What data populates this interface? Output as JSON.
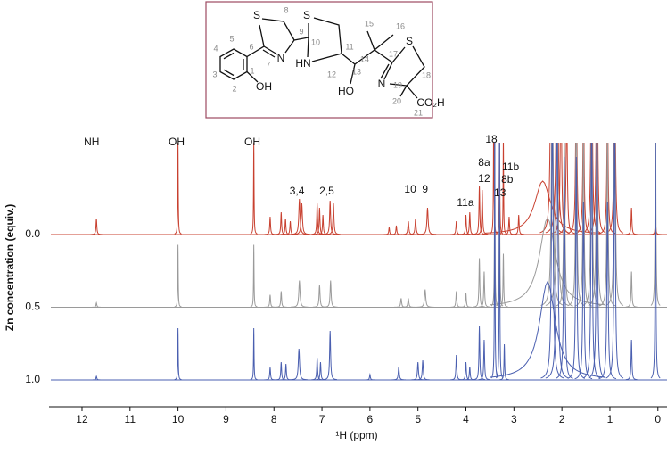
{
  "structure": {
    "atoms": [
      "S",
      "N",
      "OH",
      "S",
      "HN",
      "HO",
      "S",
      "N",
      "CO₂H"
    ],
    "numbers": [
      "1",
      "2",
      "3",
      "4",
      "5",
      "6",
      "7",
      "8",
      "9",
      "10",
      "11",
      "12",
      "13",
      "14",
      "15",
      "16",
      "17",
      "18",
      "19",
      "20",
      "21"
    ]
  },
  "chart_data": {
    "type": "spectrum",
    "xlabel": "¹H (ppm)",
    "ylabel": "Zn concentration (equiv.)",
    "xlim": [
      12.65,
      -0.19
    ],
    "xticks": [
      12,
      11,
      10,
      9,
      8,
      7,
      6,
      5,
      4,
      3,
      2,
      1,
      0
    ],
    "series": [
      {
        "name": "0.0",
        "color": "#c8402f",
        "peaks": [
          [
            11.7,
            18,
            0.01
          ],
          [
            10.0,
            105,
            0.006
          ],
          [
            8.42,
            105,
            0.006
          ],
          [
            8.08,
            20,
            0.01
          ],
          [
            7.85,
            25,
            0.01
          ],
          [
            7.76,
            18,
            0.01
          ],
          [
            7.66,
            15,
            0.01
          ],
          [
            7.47,
            40,
            0.015
          ],
          [
            7.42,
            35,
            0.015
          ],
          [
            7.1,
            35,
            0.01
          ],
          [
            7.05,
            30,
            0.01
          ],
          [
            6.98,
            22,
            0.01
          ],
          [
            6.83,
            38,
            0.012
          ],
          [
            6.76,
            35,
            0.012
          ],
          [
            5.6,
            8,
            0.01
          ],
          [
            5.45,
            10,
            0.01
          ],
          [
            5.2,
            15,
            0.012
          ],
          [
            5.05,
            18,
            0.012
          ],
          [
            4.8,
            30,
            0.015
          ],
          [
            4.2,
            15,
            0.01
          ],
          [
            4.0,
            22,
            0.01
          ],
          [
            3.92,
            25,
            0.01
          ],
          [
            3.72,
            55,
            0.01
          ],
          [
            3.66,
            50,
            0.01
          ],
          [
            3.42,
            180,
            0.006
          ],
          [
            3.3,
            130,
            0.006
          ],
          [
            3.22,
            110,
            0.006
          ],
          [
            3.1,
            20,
            0.01
          ],
          [
            2.9,
            22,
            0.01
          ],
          [
            2.4,
            60,
            0.2
          ],
          [
            2.22,
            300,
            0.02
          ],
          [
            2.1,
            300,
            0.02
          ],
          [
            2.02,
            200,
            0.015
          ],
          [
            1.9,
            150,
            0.015
          ],
          [
            1.7,
            200,
            0.015
          ],
          [
            1.55,
            160,
            0.015
          ],
          [
            1.38,
            300,
            0.015
          ],
          [
            1.27,
            300,
            0.015
          ],
          [
            1.05,
            150,
            0.015
          ],
          [
            0.9,
            250,
            0.015
          ],
          [
            0.55,
            30,
            0.01
          ],
          [
            0.05,
            15,
            0.01
          ]
        ]
      },
      {
        "name": "0.5",
        "color": "#9a9a9a",
        "peaks": [
          [
            11.7,
            5,
            0.01
          ],
          [
            10.0,
            70,
            0.006
          ],
          [
            8.42,
            70,
            0.006
          ],
          [
            8.08,
            14,
            0.01
          ],
          [
            7.85,
            18,
            0.01
          ],
          [
            7.47,
            30,
            0.015
          ],
          [
            7.05,
            25,
            0.012
          ],
          [
            6.82,
            30,
            0.012
          ],
          [
            5.35,
            10,
            0.012
          ],
          [
            5.2,
            10,
            0.012
          ],
          [
            4.85,
            20,
            0.015
          ],
          [
            4.2,
            18,
            0.01
          ],
          [
            4.0,
            16,
            0.01
          ],
          [
            3.72,
            55,
            0.01
          ],
          [
            3.62,
            40,
            0.01
          ],
          [
            3.4,
            200,
            0.006
          ],
          [
            3.3,
            200,
            0.006
          ],
          [
            3.22,
            60,
            0.008
          ],
          [
            2.3,
            100,
            0.2
          ],
          [
            2.2,
            300,
            0.02
          ],
          [
            2.1,
            300,
            0.02
          ],
          [
            1.95,
            200,
            0.015
          ],
          [
            1.7,
            250,
            0.015
          ],
          [
            1.55,
            200,
            0.015
          ],
          [
            1.38,
            300,
            0.015
          ],
          [
            1.27,
            300,
            0.015
          ],
          [
            1.05,
            200,
            0.015
          ],
          [
            0.9,
            300,
            0.015
          ],
          [
            0.55,
            40,
            0.01
          ],
          [
            0.05,
            300,
            0.008
          ]
        ]
      },
      {
        "name": "1.0",
        "color": "#4a5fb0",
        "peaks": [
          [
            11.7,
            4,
            0.01
          ],
          [
            10.0,
            58,
            0.006
          ],
          [
            8.42,
            58,
            0.006
          ],
          [
            8.08,
            14,
            0.01
          ],
          [
            7.85,
            20,
            0.01
          ],
          [
            7.75,
            18,
            0.01
          ],
          [
            7.48,
            35,
            0.015
          ],
          [
            7.1,
            25,
            0.01
          ],
          [
            7.03,
            20,
            0.01
          ],
          [
            6.83,
            55,
            0.012
          ],
          [
            6.0,
            6,
            0.01
          ],
          [
            5.4,
            15,
            0.012
          ],
          [
            5.0,
            20,
            0.012
          ],
          [
            4.9,
            22,
            0.012
          ],
          [
            4.2,
            28,
            0.01
          ],
          [
            4.0,
            20,
            0.01
          ],
          [
            3.92,
            15,
            0.01
          ],
          [
            3.72,
            60,
            0.01
          ],
          [
            3.62,
            45,
            0.01
          ],
          [
            3.4,
            300,
            0.006
          ],
          [
            3.3,
            300,
            0.006
          ],
          [
            3.2,
            40,
            0.008
          ],
          [
            2.3,
            110,
            0.2
          ],
          [
            2.2,
            300,
            0.02
          ],
          [
            2.1,
            300,
            0.02
          ],
          [
            1.95,
            250,
            0.015
          ],
          [
            1.7,
            250,
            0.015
          ],
          [
            1.55,
            200,
            0.015
          ],
          [
            1.38,
            300,
            0.015
          ],
          [
            1.27,
            300,
            0.015
          ],
          [
            1.05,
            200,
            0.015
          ],
          [
            0.9,
            300,
            0.015
          ],
          [
            0.55,
            45,
            0.01
          ],
          [
            0.05,
            300,
            0.008
          ]
        ]
      }
    ],
    "annotations": [
      {
        "text": "NH",
        "x": 11.8,
        "y": 103
      },
      {
        "text": "OH",
        "x": 10.03,
        "y": 103
      },
      {
        "text": "OH",
        "x": 8.45,
        "y": 103
      },
      {
        "text": "3,4",
        "x": 7.52,
        "y": 48
      },
      {
        "text": "2,5",
        "x": 6.9,
        "y": 48
      },
      {
        "text": "10",
        "x": 5.16,
        "y": 50
      },
      {
        "text": "9",
        "x": 4.85,
        "y": 50
      },
      {
        "text": "11a",
        "x": 4.01,
        "y": 35
      },
      {
        "text": "18",
        "x": 3.47,
        "y": 106
      },
      {
        "text": "8a",
        "x": 3.62,
        "y": 80
      },
      {
        "text": "12",
        "x": 3.62,
        "y": 62
      },
      {
        "text": "13",
        "x": 3.29,
        "y": 46
      },
      {
        "text": "11b",
        "x": 3.07,
        "y": 75
      },
      {
        "text": "8b",
        "x": 3.14,
        "y": 61
      }
    ]
  }
}
